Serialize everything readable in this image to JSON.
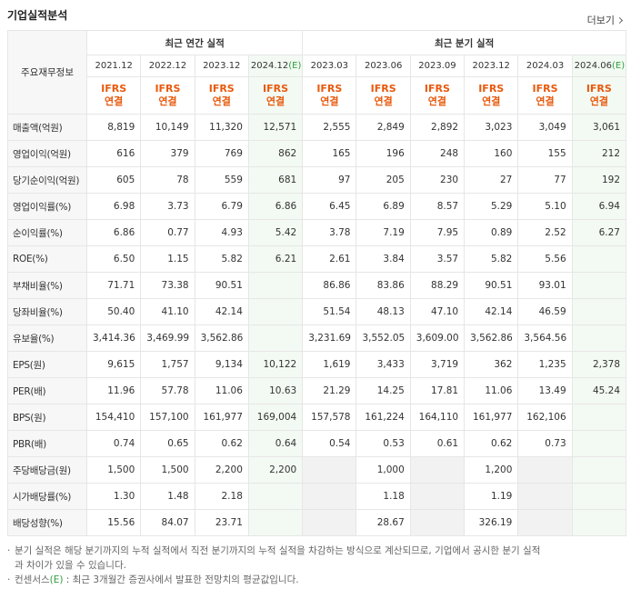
{
  "header": {
    "title": "기업실적분석",
    "more": "더보기"
  },
  "table": {
    "corner": "주요재무정보",
    "groups": [
      {
        "label": "최근 연간 실적",
        "span": 4
      },
      {
        "label": "최근 분기 실적",
        "span": 6
      }
    ],
    "periods": [
      {
        "date": "2021.12"
      },
      {
        "date": "2022.12"
      },
      {
        "date": "2023.12"
      },
      {
        "date": "2024.12",
        "mark": "(E)"
      },
      {
        "date": "2023.03"
      },
      {
        "date": "2023.06"
      },
      {
        "date": "2023.09"
      },
      {
        "date": "2023.12"
      },
      {
        "date": "2024.03"
      },
      {
        "date": "2024.06",
        "mark": "(E)"
      }
    ],
    "basis": [
      [
        "IFRS",
        "연결"
      ],
      [
        "IFRS",
        "연결"
      ],
      [
        "IFRS",
        "연결"
      ],
      [
        "IFRS",
        "연결"
      ],
      [
        "IFRS",
        "연결"
      ],
      [
        "IFRS",
        "연결"
      ],
      [
        "IFRS",
        "연결"
      ],
      [
        "IFRS",
        "연결"
      ],
      [
        "IFRS",
        "연결"
      ],
      [
        "IFRS",
        "연결"
      ]
    ],
    "sections": [
      {
        "rows": [
          {
            "label": "매출액(억원)",
            "values": [
              "8,819",
              "10,149",
              "11,320",
              "12,571",
              "2,555",
              "2,849",
              "2,892",
              "3,023",
              "3,049",
              "3,061"
            ]
          },
          {
            "label": "영업이익(억원)",
            "values": [
              "616",
              "379",
              "769",
              "862",
              "165",
              "196",
              "248",
              "160",
              "155",
              "212"
            ]
          },
          {
            "label": "당기순이익(억원)",
            "values": [
              "605",
              "78",
              "559",
              "681",
              "97",
              "205",
              "230",
              "27",
              "77",
              "192"
            ]
          }
        ]
      },
      {
        "rows": [
          {
            "label": "영업이익률(%)",
            "values": [
              "6.98",
              "3.73",
              "6.79",
              "6.86",
              "6.45",
              "6.89",
              "8.57",
              "5.29",
              "5.10",
              "6.94"
            ]
          },
          {
            "label": "순이익률(%)",
            "values": [
              "6.86",
              "0.77",
              "4.93",
              "5.42",
              "3.78",
              "7.19",
              "7.95",
              "0.89",
              "2.52",
              "6.27"
            ]
          },
          {
            "label": "ROE(%)",
            "values": [
              "6.50",
              "1.15",
              "5.82",
              "6.21",
              "2.61",
              "3.84",
              "3.57",
              "5.82",
              "5.56",
              null
            ]
          }
        ]
      },
      {
        "rows": [
          {
            "label": "부채비율(%)",
            "values": [
              "71.71",
              "73.38",
              "90.51",
              null,
              "86.86",
              "83.86",
              "88.29",
              "90.51",
              "93.01",
              null
            ]
          },
          {
            "label": "당좌비율(%)",
            "values": [
              "50.40",
              "41.10",
              "42.14",
              null,
              "51.54",
              "48.13",
              "47.10",
              "42.14",
              "46.59",
              null
            ]
          },
          {
            "label": "유보율(%)",
            "values": [
              "3,414.36",
              "3,469.99",
              "3,562.86",
              null,
              "3,231.69",
              "3,552.05",
              "3,609.00",
              "3,562.86",
              "3,564.56",
              null
            ]
          }
        ]
      },
      {
        "rows": [
          {
            "label": "EPS(원)",
            "values": [
              "9,615",
              "1,757",
              "9,134",
              "10,122",
              "1,619",
              "3,433",
              "3,719",
              "362",
              "1,235",
              "2,378"
            ]
          },
          {
            "label": "PER(배)",
            "values": [
              "11.96",
              "57.78",
              "11.06",
              "10.63",
              "21.29",
              "14.25",
              "17.81",
              "11.06",
              "13.49",
              "45.24"
            ]
          },
          {
            "label": "BPS(원)",
            "values": [
              "154,410",
              "157,100",
              "161,977",
              "169,004",
              "157,578",
              "161,224",
              "164,110",
              "161,977",
              "162,106",
              null
            ]
          },
          {
            "label": "PBR(배)",
            "values": [
              "0.74",
              "0.65",
              "0.62",
              "0.64",
              "0.54",
              "0.53",
              "0.61",
              "0.62",
              "0.73",
              null
            ]
          }
        ]
      },
      {
        "rows": [
          {
            "label": "주당배당금(원)",
            "values": [
              "1,500",
              "1,500",
              "2,200",
              "2,200",
              null,
              "1,000",
              null,
              "1,200",
              null,
              null
            ]
          },
          {
            "label": "시가배당률(%)",
            "values": [
              "1.30",
              "1.48",
              "2.18",
              null,
              null,
              "1.18",
              null,
              "1.19",
              null,
              null
            ]
          },
          {
            "label": "배당성향(%)",
            "values": [
              "15.56",
              "84.07",
              "23.71",
              null,
              null,
              "28.67",
              null,
              "326.19",
              null,
              null
            ]
          }
        ]
      }
    ]
  },
  "notes": [
    {
      "text": "분기 실적은 해당 분기까지의 누적 실적에서 직전 분기까지의 누적 실적을 차감하는 방식으로 계산되므로, 기업에서 공시한 분기 실적과 차이가 있을 수 있습니다."
    },
    {
      "before": "컨센서스",
      "mark": "(E)",
      "after": " : 최근 3개월간 증권사에서 발표한 전망치의 평균값입니다."
    }
  ]
}
